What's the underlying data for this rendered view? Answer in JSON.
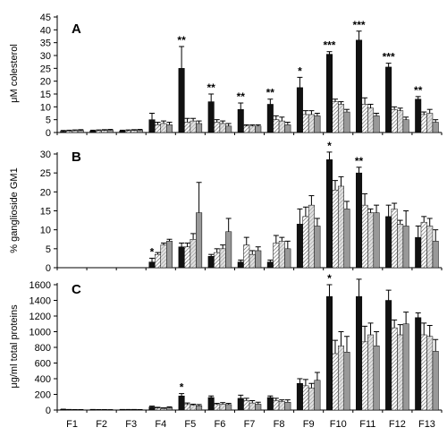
{
  "chart_data": [
    {
      "type": "bar",
      "panel_label": "A",
      "ylabel": "μM colesterol",
      "ylim": [
        0,
        45
      ],
      "yticks": [
        0,
        5,
        10,
        15,
        20,
        25,
        30,
        35,
        40,
        45
      ],
      "categories": [
        "F1",
        "F2",
        "F3",
        "F4",
        "F5",
        "F6",
        "F7",
        "F8",
        "F9",
        "F10",
        "F11",
        "F12",
        "F13"
      ],
      "series": [
        {
          "values": [
            0.5,
            0.6,
            0.6,
            5,
            25,
            12,
            9,
            11,
            17.5,
            30.5,
            36,
            25.5,
            13
          ],
          "errors": [
            0.3,
            0.3,
            0.3,
            2.5,
            8.5,
            3,
            2.5,
            2,
            4,
            1,
            3.5,
            1.5,
            1
          ]
        },
        {
          "values": [
            0.6,
            0.7,
            0.7,
            3,
            4,
            4,
            2.5,
            5,
            7,
            12,
            11,
            9,
            7
          ],
          "errors": [
            0.3,
            0.3,
            0.3,
            1,
            1.5,
            1,
            0.5,
            1.5,
            1.5,
            1,
            2.5,
            1,
            1
          ]
        },
        {
          "values": [
            0.7,
            0.8,
            0.8,
            3.5,
            4.5,
            3.5,
            2.5,
            4.5,
            7,
            11,
            9.5,
            8.5,
            7.5
          ],
          "errors": [
            0.3,
            0.3,
            0.3,
            1,
            1,
            1,
            0.5,
            1.5,
            1.5,
            1,
            1.5,
            1,
            1.5
          ]
        },
        {
          "values": [
            0.8,
            0.9,
            0.9,
            3,
            3.5,
            2.5,
            2.5,
            3,
            6.5,
            8,
            6.5,
            5,
            4
          ],
          "errors": [
            0.3,
            0.3,
            0.3,
            1,
            1,
            1,
            0.5,
            1,
            1,
            1,
            1,
            1,
            1
          ]
        }
      ],
      "significance": [
        {
          "category": "F5",
          "series": 0,
          "label": "**"
        },
        {
          "category": "F6",
          "series": 0,
          "label": "**"
        },
        {
          "category": "F7",
          "series": 0,
          "label": "**"
        },
        {
          "category": "F8",
          "series": 0,
          "label": "**"
        },
        {
          "category": "F9",
          "series": 0,
          "label": "*"
        },
        {
          "category": "F10",
          "series": 0,
          "label": "***"
        },
        {
          "category": "F11",
          "series": 0,
          "label": "***"
        },
        {
          "category": "F12",
          "series": 0,
          "label": "***"
        },
        {
          "category": "F13",
          "series": 0,
          "label": "**"
        }
      ]
    },
    {
      "type": "bar",
      "panel_label": "B",
      "ylabel": "% ganglioside GM1",
      "ylim": [
        0,
        30
      ],
      "yticks": [
        0,
        5,
        10,
        15,
        20,
        25,
        30
      ],
      "categories": [
        "F1",
        "F2",
        "F3",
        "F4",
        "F5",
        "F6",
        "F7",
        "F8",
        "F9",
        "F10",
        "F11",
        "F12",
        "F13"
      ],
      "series": [
        {
          "values": [
            null,
            null,
            null,
            1.5,
            5.5,
            3,
            1.5,
            1.5,
            11.5,
            28.5,
            25,
            13.5,
            8
          ],
          "errors": [
            null,
            null,
            null,
            1,
            1,
            0.5,
            0.5,
            0.5,
            4,
            2,
            1.5,
            3,
            3
          ]
        },
        {
          "values": [
            null,
            null,
            null,
            3.5,
            5.5,
            4,
            6,
            6.5,
            13.5,
            20.5,
            16.5,
            15.5,
            12
          ],
          "errors": [
            null,
            null,
            null,
            0.5,
            1,
            1,
            2,
            2,
            2.5,
            2.5,
            3,
            1.5,
            1.5
          ]
        },
        {
          "values": [
            null,
            null,
            null,
            6,
            7.5,
            5,
            3.5,
            7,
            16.5,
            21.5,
            14.5,
            11.5,
            11
          ],
          "errors": [
            null,
            null,
            null,
            0.5,
            1.5,
            1,
            1,
            1,
            2.5,
            2.5,
            1,
            1,
            2
          ]
        },
        {
          "values": [
            null,
            null,
            null,
            7,
            14.5,
            9.5,
            4.5,
            5,
            11,
            15.5,
            14.5,
            11,
            7
          ],
          "errors": [
            null,
            null,
            null,
            0.5,
            8,
            3.5,
            1,
            2,
            2,
            2,
            2,
            4,
            3
          ]
        }
      ],
      "significance": [
        {
          "category": "F4",
          "series": 0,
          "label": "*"
        },
        {
          "category": "F10",
          "series": 0,
          "label": "*"
        },
        {
          "category": "F11",
          "series": 0,
          "label": "**"
        }
      ]
    },
    {
      "type": "bar",
      "panel_label": "C",
      "ylabel": "μg/ml  total proteins",
      "ylim": [
        0,
        1600
      ],
      "yticks": [
        0,
        200,
        400,
        600,
        800,
        1000,
        1200,
        1400,
        1600
      ],
      "categories": [
        "F1",
        "F2",
        "F3",
        "F4",
        "F5",
        "F6",
        "F7",
        "F8",
        "F9",
        "F10",
        "F11",
        "F12",
        "F13"
      ],
      "series": [
        {
          "values": [
            8,
            5,
            5,
            40,
            180,
            160,
            150,
            160,
            340,
            1450,
            1450,
            1400,
            1180
          ],
          "errors": [
            3,
            2,
            2,
            10,
            30,
            20,
            40,
            20,
            60,
            150,
            220,
            130,
            60
          ]
        },
        {
          "values": [
            5,
            4,
            5,
            25,
            70,
            70,
            120,
            120,
            310,
            720,
            870,
            1050,
            960
          ],
          "errors": [
            2,
            2,
            2,
            10,
            20,
            15,
            30,
            30,
            80,
            170,
            200,
            100,
            150
          ]
        },
        {
          "values": [
            4,
            4,
            5,
            20,
            60,
            75,
            90,
            110,
            280,
            820,
            960,
            960,
            940
          ],
          "errors": [
            2,
            2,
            2,
            8,
            15,
            20,
            30,
            20,
            60,
            180,
            150,
            130,
            140
          ]
        },
        {
          "values": [
            4,
            3,
            4,
            30,
            55,
            70,
            75,
            100,
            380,
            740,
            820,
            1100,
            750
          ],
          "errors": [
            2,
            2,
            2,
            10,
            15,
            15,
            25,
            30,
            100,
            200,
            180,
            150,
            150
          ]
        }
      ],
      "significance": [
        {
          "category": "F5",
          "series": 0,
          "label": "*"
        },
        {
          "category": "F10",
          "series": 0,
          "label": "*"
        }
      ]
    }
  ],
  "style": {
    "series_colors": [
      "#111111",
      "#ffffff",
      "#d9d9d9",
      "#999999"
    ],
    "series_patterns": [
      "solid",
      "hatch",
      "hatch",
      "solid"
    ],
    "background": "#ffffff"
  }
}
